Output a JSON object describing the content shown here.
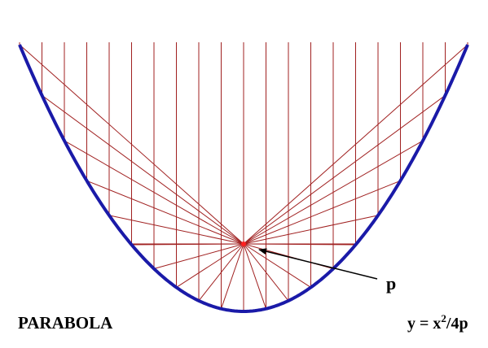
{
  "title": "PARABOLA",
  "focus_label": "p",
  "equation": {
    "base": "y = x",
    "exponent": "2",
    "rest": "/4p"
  }
}
